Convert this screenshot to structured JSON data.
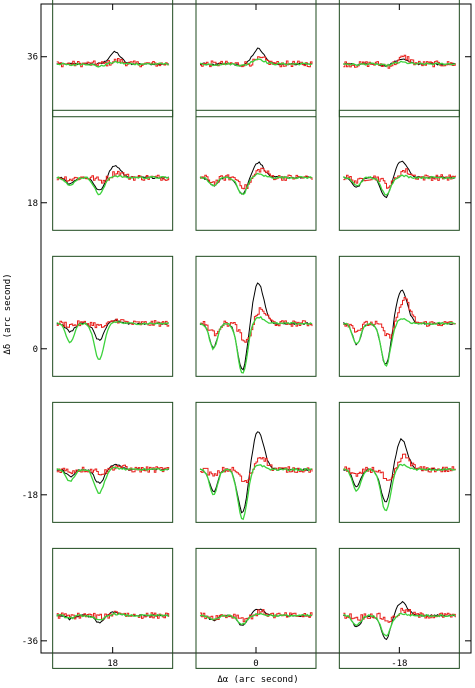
{
  "chart_data": {
    "type": "line",
    "xlabel": "Δα (arc second)",
    "ylabel": "Δδ (arc second)",
    "x_ticks": [
      "18",
      "0",
      "-18"
    ],
    "y_ticks": [
      "36",
      "18",
      "0",
      "-18",
      "-36"
    ],
    "x_tick_values": [
      18,
      0,
      -18
    ],
    "y_tick_values": [
      36,
      18,
      0,
      -18,
      -36
    ],
    "xlim": [
      27,
      -27
    ],
    "ylim": [
      -37.5,
      42.5
    ],
    "grid": false,
    "legend": "none",
    "series_colors": {
      "black": "#000000",
      "red": "#e8201c",
      "green": "#3cd23c"
    },
    "frame_color": "#1e4a1e",
    "panels": [
      {
        "dx": 18,
        "dy": 36,
        "black": {
          "dip": 0,
          "peak": 0.7
        },
        "red": {
          "dip": 0,
          "peak": 0.2
        },
        "green": {
          "dip": 0.15,
          "peak": 0.1
        }
      },
      {
        "dx": 0,
        "dy": 36,
        "black": {
          "dip": 0.1,
          "peak": 0.9
        },
        "red": {
          "dip": 0,
          "peak": 0.3
        },
        "green": {
          "dip": 0.1,
          "peak": 0.3
        }
      },
      {
        "dx": -18,
        "dy": 36,
        "black": {
          "dip": 0.1,
          "peak": 0.3
        },
        "red": {
          "dip": 0.1,
          "peak": 0.4
        },
        "green": {
          "dip": 0.1,
          "peak": 0.1
        }
      },
      {
        "dx": 18,
        "dy": 22,
        "black": {
          "dip": 0.8,
          "peak": 0.7
        },
        "red": {
          "dip": 0.2,
          "peak": 0.3
        },
        "green": {
          "dip": 1.0,
          "peak": 0.1
        }
      },
      {
        "dx": 0,
        "dy": 22,
        "black": {
          "dip": 1.0,
          "peak": 0.9
        },
        "red": {
          "dip": 0.6,
          "peak": 0.5
        },
        "green": {
          "dip": 1.0,
          "peak": 0.2
        }
      },
      {
        "dx": -18,
        "dy": 22,
        "black": {
          "dip": 1.2,
          "peak": 1.0
        },
        "red": {
          "dip": 0.5,
          "peak": 0.4
        },
        "green": {
          "dip": 1.0,
          "peak": 0.1
        }
      },
      {
        "dx": 18,
        "dy": 4,
        "black": {
          "dip": 1.0,
          "peak": 0.2
        },
        "red": {
          "dip": 0.2,
          "peak": 0.2
        },
        "green": {
          "dip": 2.2,
          "peak": 0.1
        }
      },
      {
        "dx": 0,
        "dy": 4,
        "black": {
          "dip": 2.8,
          "peak": 2.4
        },
        "red": {
          "dip": 1.2,
          "peak": 0.8
        },
        "green": {
          "dip": 3.0,
          "peak": 0.4
        }
      },
      {
        "dx": -18,
        "dy": 4,
        "black": {
          "dip": 2.5,
          "peak": 2.0
        },
        "red": {
          "dip": 0.8,
          "peak": 1.4
        },
        "green": {
          "dip": 2.5,
          "peak": 0.3
        }
      },
      {
        "dx": 18,
        "dy": -14,
        "black": {
          "dip": 0.8,
          "peak": 0.3
        },
        "red": {
          "dip": 0.2,
          "peak": 0.2
        },
        "green": {
          "dip": 1.4,
          "peak": 0.1
        }
      },
      {
        "dx": 0,
        "dy": -14,
        "black": {
          "dip": 2.6,
          "peak": 2.3
        },
        "red": {
          "dip": 0.8,
          "peak": 0.8
        },
        "green": {
          "dip": 3.0,
          "peak": 0.3
        }
      },
      {
        "dx": -18,
        "dy": -14,
        "black": {
          "dip": 2.0,
          "peak": 1.8
        },
        "red": {
          "dip": 0.8,
          "peak": 0.8
        },
        "green": {
          "dip": 2.5,
          "peak": 0.3
        }
      },
      {
        "dx": 18,
        "dy": -32,
        "black": {
          "dip": 0.4,
          "peak": 0.2
        },
        "red": {
          "dip": 0.1,
          "peak": 0.2
        },
        "green": {
          "dip": 0.3,
          "peak": 0.1
        }
      },
      {
        "dx": 0,
        "dy": -32,
        "black": {
          "dip": 0.6,
          "peak": 0.4
        },
        "red": {
          "dip": 0.2,
          "peak": 0.2
        },
        "green": {
          "dip": 0.5,
          "peak": 0.1
        }
      },
      {
        "dx": -18,
        "dy": -32,
        "black": {
          "dip": 1.4,
          "peak": 0.8
        },
        "red": {
          "dip": 0.3,
          "peak": 0.3
        },
        "green": {
          "dip": 1.2,
          "peak": 0.1
        }
      }
    ]
  }
}
